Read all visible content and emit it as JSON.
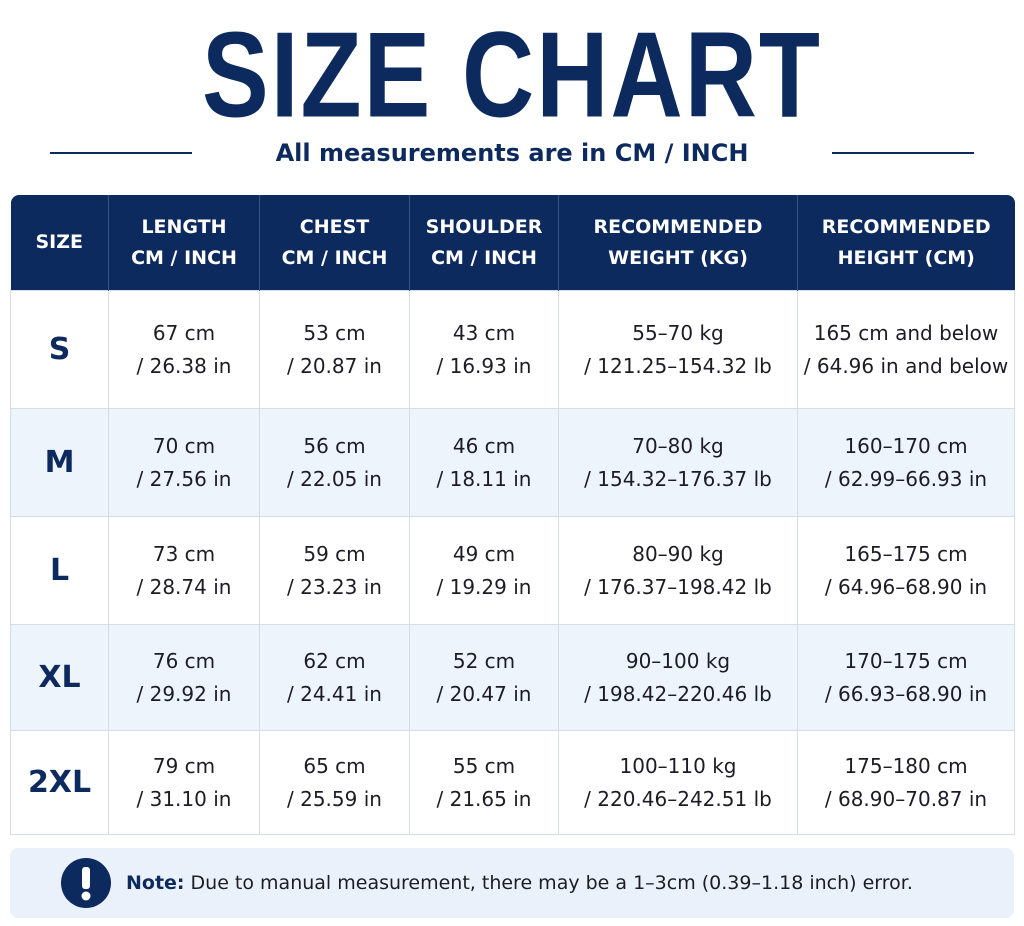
{
  "header": {
    "title": "SIZE CHART",
    "subtitle": "All measurements are in CM / INCH"
  },
  "table": {
    "headers": [
      [
        "SIZE"
      ],
      [
        "LENGTH",
        "CM / INCH"
      ],
      [
        "CHEST",
        "CM / INCH"
      ],
      [
        "SHOULDER",
        "CM / INCH"
      ],
      [
        "RECOMMENDED",
        "WEIGHT (KG)"
      ],
      [
        "RECOMMENDED",
        "HEIGHT (CM)"
      ]
    ],
    "rows": [
      {
        "size": "S",
        "cells": [
          [
            "67 cm",
            "/ 26.38 in"
          ],
          [
            "53 cm",
            "/ 20.87 in"
          ],
          [
            "43 cm",
            "/ 16.93 in"
          ],
          [
            "55–70 kg",
            "/ 121.25–154.32 lb"
          ],
          [
            "165 cm and below",
            "/ 64.96 in and below"
          ]
        ]
      },
      {
        "size": "M",
        "cells": [
          [
            "70 cm",
            "/ 27.56 in"
          ],
          [
            "56 cm",
            "/ 22.05 in"
          ],
          [
            "46 cm",
            "/ 18.11 in"
          ],
          [
            "70–80 kg",
            "/ 154.32–176.37 lb"
          ],
          [
            "160–170 cm",
            "/ 62.99–66.93 in"
          ]
        ]
      },
      {
        "size": "L",
        "cells": [
          [
            "73 cm",
            "/ 28.74 in"
          ],
          [
            "59 cm",
            "/ 23.23 in"
          ],
          [
            "49 cm",
            "/ 19.29 in"
          ],
          [
            "80–90 kg",
            "/ 176.37–198.42 lb"
          ],
          [
            "165–175 cm",
            "/ 64.96–68.90 in"
          ]
        ]
      },
      {
        "size": "XL",
        "cells": [
          [
            "76 cm",
            "/ 29.92 in"
          ],
          [
            "62 cm",
            "/ 24.41 in"
          ],
          [
            "52 cm",
            "/ 20.47 in"
          ],
          [
            "90–100 kg",
            "/ 198.42–220.46 lb"
          ],
          [
            "170–175 cm",
            "/ 66.93–68.90 in"
          ]
        ]
      },
      {
        "size": "2XL",
        "cells": [
          [
            "79 cm",
            "/ 31.10 in"
          ],
          [
            "65 cm",
            "/ 25.59 in"
          ],
          [
            "55 cm",
            "/ 21.65 in"
          ],
          [
            "100–110 kg",
            "/ 220.46–242.51 lb"
          ],
          [
            "175–180 cm",
            "/ 68.90–70.87 in"
          ]
        ]
      }
    ]
  },
  "note": {
    "label": "Note:",
    "text": "Due to manual measurement, there may be a 1–3cm (0.39–1.18 inch) error."
  }
}
